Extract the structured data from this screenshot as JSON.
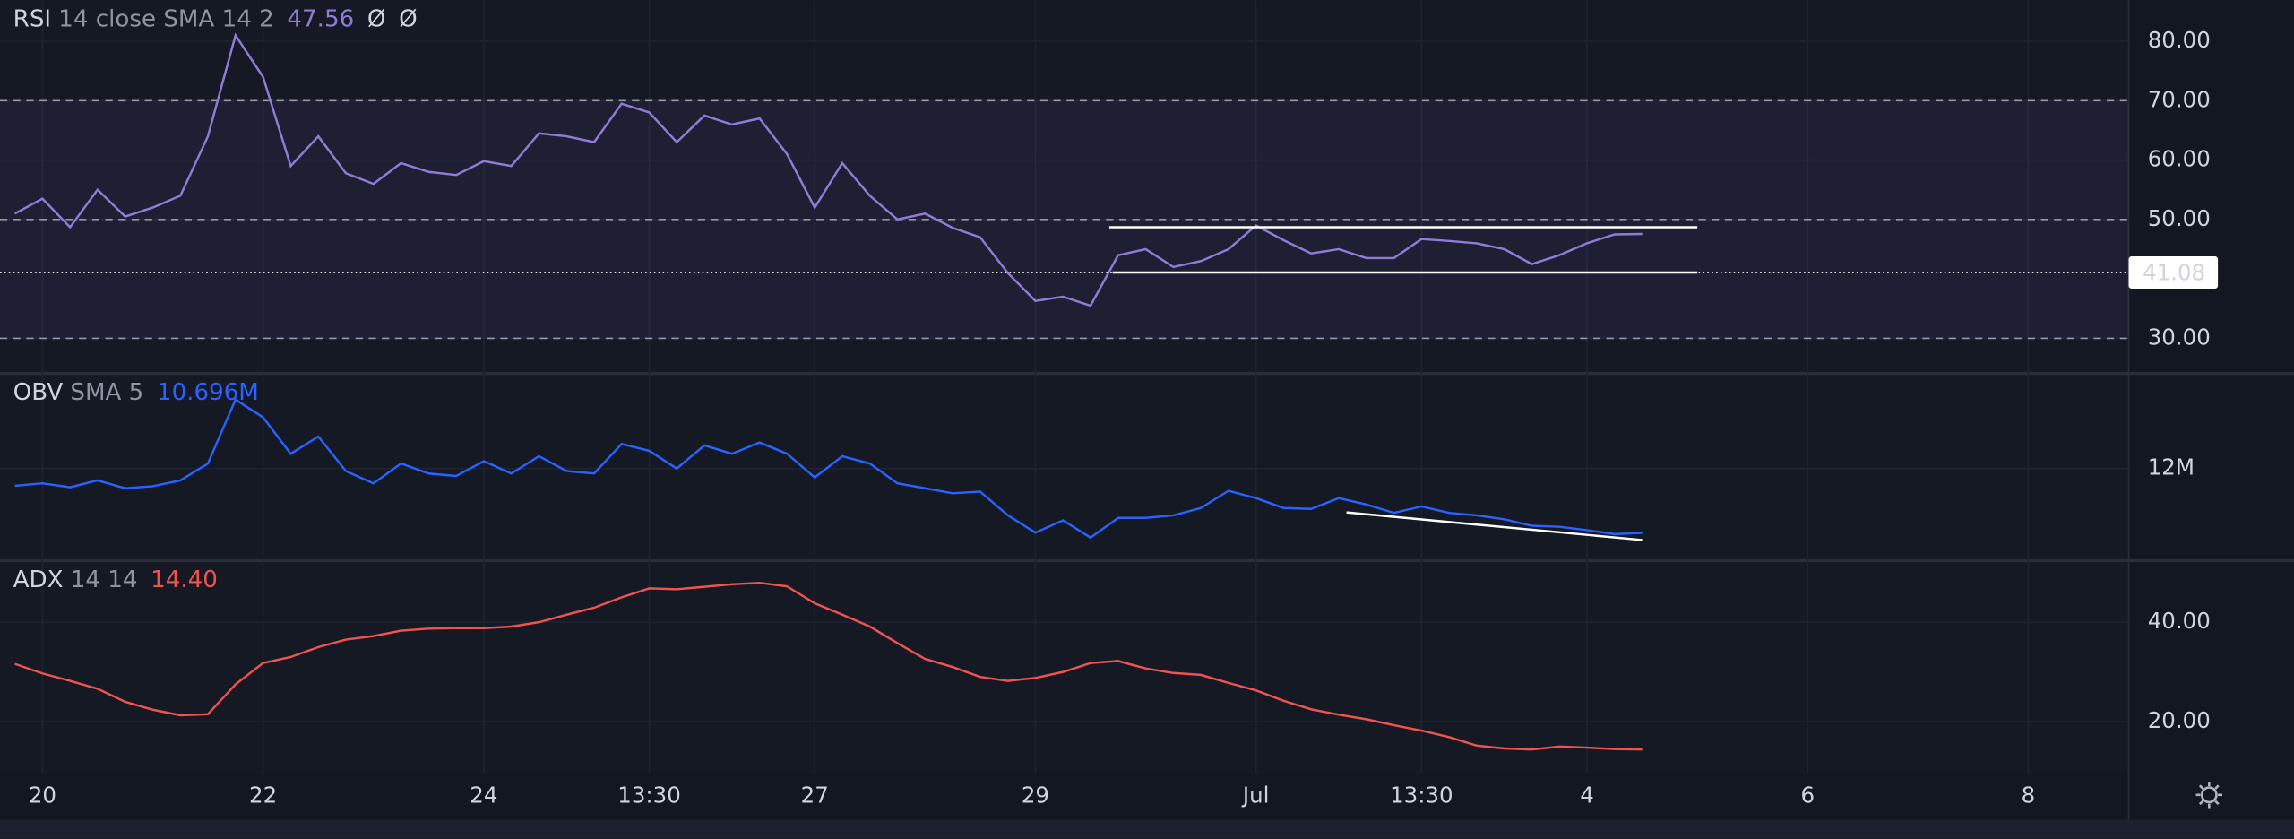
{
  "chart_data": [
    {
      "type": "line",
      "name": "RSI",
      "params": "14 close SMA 14 2",
      "header_value": "47.56",
      "extras": [
        "Ø",
        "Ø"
      ],
      "x": [
        19.75,
        20,
        20.25,
        20.5,
        20.75,
        21,
        21.25,
        21.5,
        21.75,
        22,
        22.25,
        22.5,
        22.75,
        23,
        23.25,
        23.5,
        23.75,
        24,
        24.25,
        24.5,
        24.75,
        25,
        25.25,
        25.5,
        25.75,
        26,
        26.25,
        26.5,
        26.75,
        27,
        27.25,
        27.5,
        27.75,
        28,
        28.25,
        28.5,
        28.75,
        29,
        29.25,
        29.5,
        29.75,
        30,
        30.25,
        30.5,
        30.75,
        31,
        31.25,
        31.5,
        31.75,
        32,
        32.25,
        32.5,
        32.75,
        33,
        33.25,
        33.5,
        33.75,
        34,
        34.25,
        34.5
      ],
      "color": "#8e7cd6",
      "values": [
        51,
        53.5,
        48.7,
        55,
        50.5,
        52,
        54,
        64,
        81,
        74,
        59,
        64,
        57.8,
        56,
        59.5,
        58,
        57.5,
        59.8,
        59,
        64.5,
        64,
        63,
        69.5,
        68,
        63,
        67.5,
        66,
        67,
        61,
        52,
        59.5,
        54,
        50,
        51,
        48.6,
        47,
        41,
        36.3,
        37,
        35.5,
        44,
        45,
        42,
        43,
        45,
        49,
        46.5,
        44.3,
        45,
        43.5,
        43.5,
        46.7,
        46.4,
        46,
        45,
        42.5,
        44,
        46,
        47.5,
        47.56
      ],
      "xlim": [
        19.615,
        38.91
      ],
      "ylim": [
        24.1,
        86.9
      ],
      "yticks": [
        {
          "value": 30,
          "label": "30.00"
        },
        {
          "value": 50,
          "label": "50.00"
        },
        {
          "value": 60,
          "label": "60.00"
        },
        {
          "value": 70,
          "label": "70.00"
        },
        {
          "value": 80,
          "label": "80.00"
        }
      ],
      "band": [
        30,
        70
      ],
      "levels": [
        30,
        50,
        70
      ],
      "marker": 41.08,
      "trendlines": [
        {
          "x": [
            29.67,
            35.0
          ],
          "y": [
            48.7,
            48.7
          ]
        },
        {
          "x": [
            29.7,
            35.0
          ],
          "y": [
            41.08,
            41.08
          ]
        }
      ]
    },
    {
      "type": "line",
      "name": "OBV",
      "params": "SMA 5",
      "header_value": "10.696M",
      "x": [
        19.75,
        20,
        20.25,
        20.5,
        20.75,
        21,
        21.25,
        21.5,
        21.75,
        22,
        22.25,
        22.5,
        22.75,
        23,
        23.25,
        23.5,
        23.75,
        24,
        24.25,
        24.5,
        24.75,
        25,
        25.25,
        25.5,
        25.75,
        26,
        26.25,
        26.5,
        26.75,
        27,
        27.25,
        27.5,
        27.75,
        28,
        28.25,
        28.5,
        28.75,
        29,
        29.25,
        29.5,
        29.75,
        30,
        30.25,
        30.5,
        30.75,
        31,
        31.25,
        31.5,
        31.75,
        32,
        32.25,
        32.5,
        32.75,
        33,
        33.25,
        33.5,
        33.75,
        34,
        34.25,
        34.5
      ],
      "color": "#2962ff",
      "values": [
        11.65,
        11.7,
        11.62,
        11.76,
        11.6,
        11.64,
        11.76,
        12.1,
        13.4,
        13.04,
        12.3,
        12.65,
        11.95,
        11.7,
        12.1,
        11.9,
        11.85,
        12.15,
        11.9,
        12.25,
        11.95,
        11.9,
        12.5,
        12.36,
        12.0,
        12.47,
        12.3,
        12.53,
        12.3,
        11.82,
        12.25,
        12.1,
        11.7,
        11.6,
        11.5,
        11.53,
        11.05,
        10.7,
        10.95,
        10.6,
        11.0,
        11.0,
        11.05,
        11.2,
        11.55,
        11.4,
        11.2,
        11.18,
        11.4,
        11.27,
        11.1,
        11.23,
        11.1,
        11.05,
        10.97,
        10.84,
        10.82,
        10.75,
        10.67,
        10.696
      ],
      "xlim": [
        19.615,
        38.91
      ],
      "ylim": [
        10.13,
        13.93
      ],
      "yticks": [
        {
          "value": 12,
          "label": "12M"
        }
      ],
      "trendlines": [
        {
          "x": [
            31.82,
            34.5
          ],
          "y": [
            11.11,
            10.55
          ]
        }
      ]
    },
    {
      "type": "line",
      "name": "ADX",
      "params": "14 14",
      "header_value": "14.40",
      "x": [
        19.75,
        20,
        20.25,
        20.5,
        20.75,
        21,
        21.25,
        21.5,
        21.75,
        22,
        22.25,
        22.5,
        22.75,
        23,
        23.25,
        23.5,
        23.75,
        24,
        24.25,
        24.5,
        24.75,
        25,
        25.25,
        25.5,
        25.75,
        26,
        26.25,
        26.5,
        26.75,
        27,
        27.25,
        27.5,
        27.75,
        28,
        28.25,
        28.5,
        28.75,
        29,
        29.25,
        29.5,
        29.75,
        30,
        30.25,
        30.5,
        30.75,
        31,
        31.25,
        31.5,
        31.75,
        32,
        32.25,
        32.5,
        32.75,
        33,
        33.25,
        33.5,
        33.75,
        34,
        34.25,
        34.5
      ],
      "color": "#f0524f",
      "values": [
        31.6,
        29.7,
        28.2,
        26.6,
        24,
        22.4,
        21.3,
        21.5,
        27.5,
        31.8,
        33,
        35,
        36.5,
        37.2,
        38.3,
        38.7,
        38.8,
        38.8,
        39.1,
        40,
        41.5,
        42.9,
        45,
        46.8,
        46.6,
        47.1,
        47.6,
        47.9,
        47.2,
        43.8,
        41.5,
        39.1,
        35.8,
        32.6,
        31,
        29,
        28.2,
        28.8,
        30,
        31.8,
        32.2,
        30.7,
        29.8,
        29.4,
        27.8,
        26.3,
        24.2,
        22.5,
        21.4,
        20.5,
        19.3,
        18.2,
        16.9,
        15.2,
        14.6,
        14.4,
        15,
        14.8,
        14.5,
        14.4
      ],
      "xlim": [
        19.615,
        38.91
      ],
      "ylim": [
        9.7,
        52.35
      ],
      "yticks": [
        {
          "value": 20,
          "label": "20.00"
        },
        {
          "value": 40,
          "label": "40.00"
        }
      ],
      "xticks": [
        20,
        22,
        24,
        {
          "value": 25.5,
          "label": "13:30"
        },
        27,
        29,
        {
          "value": 31,
          "label": "Jul"
        },
        {
          "value": 32.5,
          "label": "13:30"
        },
        {
          "value": 34,
          "label": "4"
        },
        {
          "value": 36,
          "label": "6"
        },
        {
          "value": 38,
          "label": "8"
        }
      ]
    }
  ]
}
